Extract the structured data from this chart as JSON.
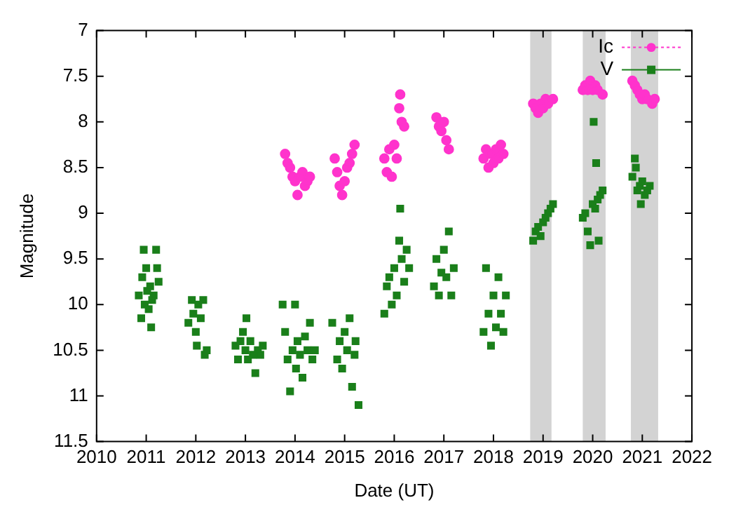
{
  "chart_data": {
    "type": "scatter",
    "xlabel": "Date (UT)",
    "ylabel": "Magnitude",
    "xlim": [
      2010,
      2022
    ],
    "xticks": [
      2010,
      2011,
      2012,
      2013,
      2014,
      2015,
      2016,
      2017,
      2018,
      2019,
      2020,
      2021,
      2022
    ],
    "ylim": [
      11.5,
      7
    ],
    "yticks": [
      7,
      7.5,
      8,
      8.5,
      9,
      9.5,
      10,
      10.5,
      11,
      11.5
    ],
    "grid": false,
    "legend": "top right",
    "bands": [
      {
        "axis": "x",
        "from": 2018.74,
        "to": 2019.17,
        "color": "#d3d3d3"
      },
      {
        "axis": "x",
        "from": 2019.8,
        "to": 2020.26,
        "color": "#d3d3d3"
      },
      {
        "axis": "x",
        "from": 2020.77,
        "to": 2021.32,
        "color": "#d3d3d3"
      }
    ],
    "series": [
      {
        "name": "Ic",
        "color": "#ff33cc",
        "marker": "circle",
        "x": [
          2013.8,
          2013.85,
          2013.9,
          2013.95,
          2014.0,
          2014.05,
          2014.1,
          2014.15,
          2014.2,
          2014.25,
          2014.3,
          2014.8,
          2014.85,
          2014.9,
          2014.95,
          2015.0,
          2015.05,
          2015.1,
          2015.15,
          2015.2,
          2015.8,
          2015.85,
          2015.9,
          2015.95,
          2016.0,
          2016.05,
          2016.1,
          2016.12,
          2016.15,
          2016.2,
          2016.85,
          2016.9,
          2016.95,
          2017.0,
          2017.05,
          2017.1,
          2017.8,
          2017.85,
          2017.9,
          2017.95,
          2018.0,
          2018.05,
          2018.1,
          2018.15,
          2018.2,
          2018.8,
          2018.85,
          2018.9,
          2018.95,
          2019.0,
          2019.05,
          2019.1,
          2019.2,
          2019.8,
          2019.85,
          2019.9,
          2019.95,
          2020.0,
          2020.05,
          2020.1,
          2020.2,
          2020.8,
          2020.85,
          2020.9,
          2020.95,
          2021.0,
          2021.05,
          2021.1,
          2021.2,
          2021.25
        ],
        "values": [
          8.35,
          8.45,
          8.5,
          8.6,
          8.65,
          8.8,
          8.6,
          8.55,
          8.7,
          8.65,
          8.6,
          8.4,
          8.55,
          8.7,
          8.8,
          8.65,
          8.5,
          8.45,
          8.35,
          8.25,
          8.4,
          8.55,
          8.3,
          8.6,
          8.25,
          8.4,
          7.85,
          7.7,
          8.0,
          8.05,
          7.95,
          8.05,
          8.1,
          8.0,
          8.2,
          8.3,
          8.4,
          8.3,
          8.5,
          8.35,
          8.45,
          8.3,
          8.4,
          8.25,
          8.35,
          7.8,
          7.85,
          7.9,
          7.8,
          7.85,
          7.75,
          7.8,
          7.75,
          7.65,
          7.6,
          7.65,
          7.55,
          7.65,
          7.6,
          7.65,
          7.7,
          7.55,
          7.6,
          7.65,
          7.7,
          7.75,
          7.7,
          7.75,
          7.8,
          7.75
        ]
      },
      {
        "name": "V",
        "color": "#1a7f1a",
        "marker": "square",
        "x": [
          2010.85,
          2010.9,
          2010.92,
          2010.95,
          2010.97,
          2011.0,
          2011.02,
          2011.05,
          2011.08,
          2011.1,
          2011.12,
          2011.15,
          2011.2,
          2011.22,
          2011.25,
          2011.85,
          2011.92,
          2011.95,
          2012.0,
          2012.02,
          2012.05,
          2012.1,
          2012.15,
          2012.18,
          2012.22,
          2012.8,
          2012.85,
          2012.9,
          2012.95,
          2013.0,
          2013.02,
          2013.05,
          2013.1,
          2013.15,
          2013.2,
          2013.25,
          2013.3,
          2013.35,
          2013.75,
          2013.8,
          2013.85,
          2013.9,
          2013.95,
          2014.0,
          2014.02,
          2014.05,
          2014.1,
          2014.15,
          2014.2,
          2014.25,
          2014.3,
          2014.35,
          2014.4,
          2014.75,
          2014.85,
          2014.9,
          2014.95,
          2015.0,
          2015.05,
          2015.1,
          2015.15,
          2015.2,
          2015.22,
          2015.28,
          2015.8,
          2015.85,
          2015.9,
          2015.95,
          2016.0,
          2016.05,
          2016.1,
          2016.12,
          2016.15,
          2016.2,
          2016.25,
          2016.3,
          2016.8,
          2016.85,
          2016.9,
          2016.95,
          2017.0,
          2017.05,
          2017.1,
          2017.15,
          2017.2,
          2017.8,
          2017.85,
          2017.9,
          2017.95,
          2018.0,
          2018.05,
          2018.1,
          2018.15,
          2018.2,
          2018.25,
          2018.8,
          2018.85,
          2018.9,
          2018.95,
          2019.0,
          2019.05,
          2019.1,
          2019.15,
          2019.2,
          2019.8,
          2019.85,
          2019.9,
          2019.95,
          2020.0,
          2020.02,
          2020.05,
          2020.07,
          2020.1,
          2020.12,
          2020.15,
          2020.2,
          2020.8,
          2020.85,
          2020.87,
          2020.9,
          2020.95,
          2020.97,
          2021.0,
          2021.05,
          2021.1,
          2021.15
        ],
        "values": [
          9.9,
          10.15,
          9.7,
          9.4,
          10.0,
          9.6,
          9.85,
          10.05,
          9.8,
          10.25,
          9.95,
          9.9,
          9.4,
          9.6,
          9.75,
          10.2,
          9.95,
          10.1,
          10.3,
          10.45,
          10.0,
          10.15,
          9.95,
          10.55,
          10.5,
          10.45,
          10.6,
          10.4,
          10.3,
          10.5,
          10.15,
          10.6,
          10.4,
          10.55,
          10.75,
          10.5,
          10.55,
          10.45,
          10.0,
          10.3,
          10.6,
          10.95,
          10.5,
          10.0,
          10.7,
          10.4,
          10.55,
          10.8,
          10.35,
          10.5,
          10.2,
          10.6,
          10.5,
          10.2,
          10.6,
          10.4,
          10.7,
          10.3,
          10.5,
          10.15,
          10.9,
          10.55,
          10.4,
          11.1,
          10.1,
          9.8,
          9.7,
          10.0,
          9.6,
          9.9,
          9.3,
          8.95,
          9.5,
          9.75,
          9.4,
          9.6,
          9.8,
          9.5,
          9.9,
          9.65,
          9.4,
          9.7,
          9.2,
          9.9,
          9.6,
          10.3,
          9.6,
          10.1,
          10.45,
          9.9,
          10.25,
          9.7,
          10.1,
          10.3,
          9.9,
          9.3,
          9.2,
          9.15,
          9.25,
          9.1,
          9.05,
          9.0,
          8.95,
          8.9,
          9.05,
          9.0,
          9.2,
          9.35,
          8.9,
          8.0,
          8.95,
          8.45,
          8.85,
          9.3,
          8.8,
          8.75,
          8.6,
          8.4,
          8.5,
          8.75,
          8.7,
          8.9,
          8.65,
          8.8,
          8.75,
          8.7
        ]
      }
    ]
  }
}
